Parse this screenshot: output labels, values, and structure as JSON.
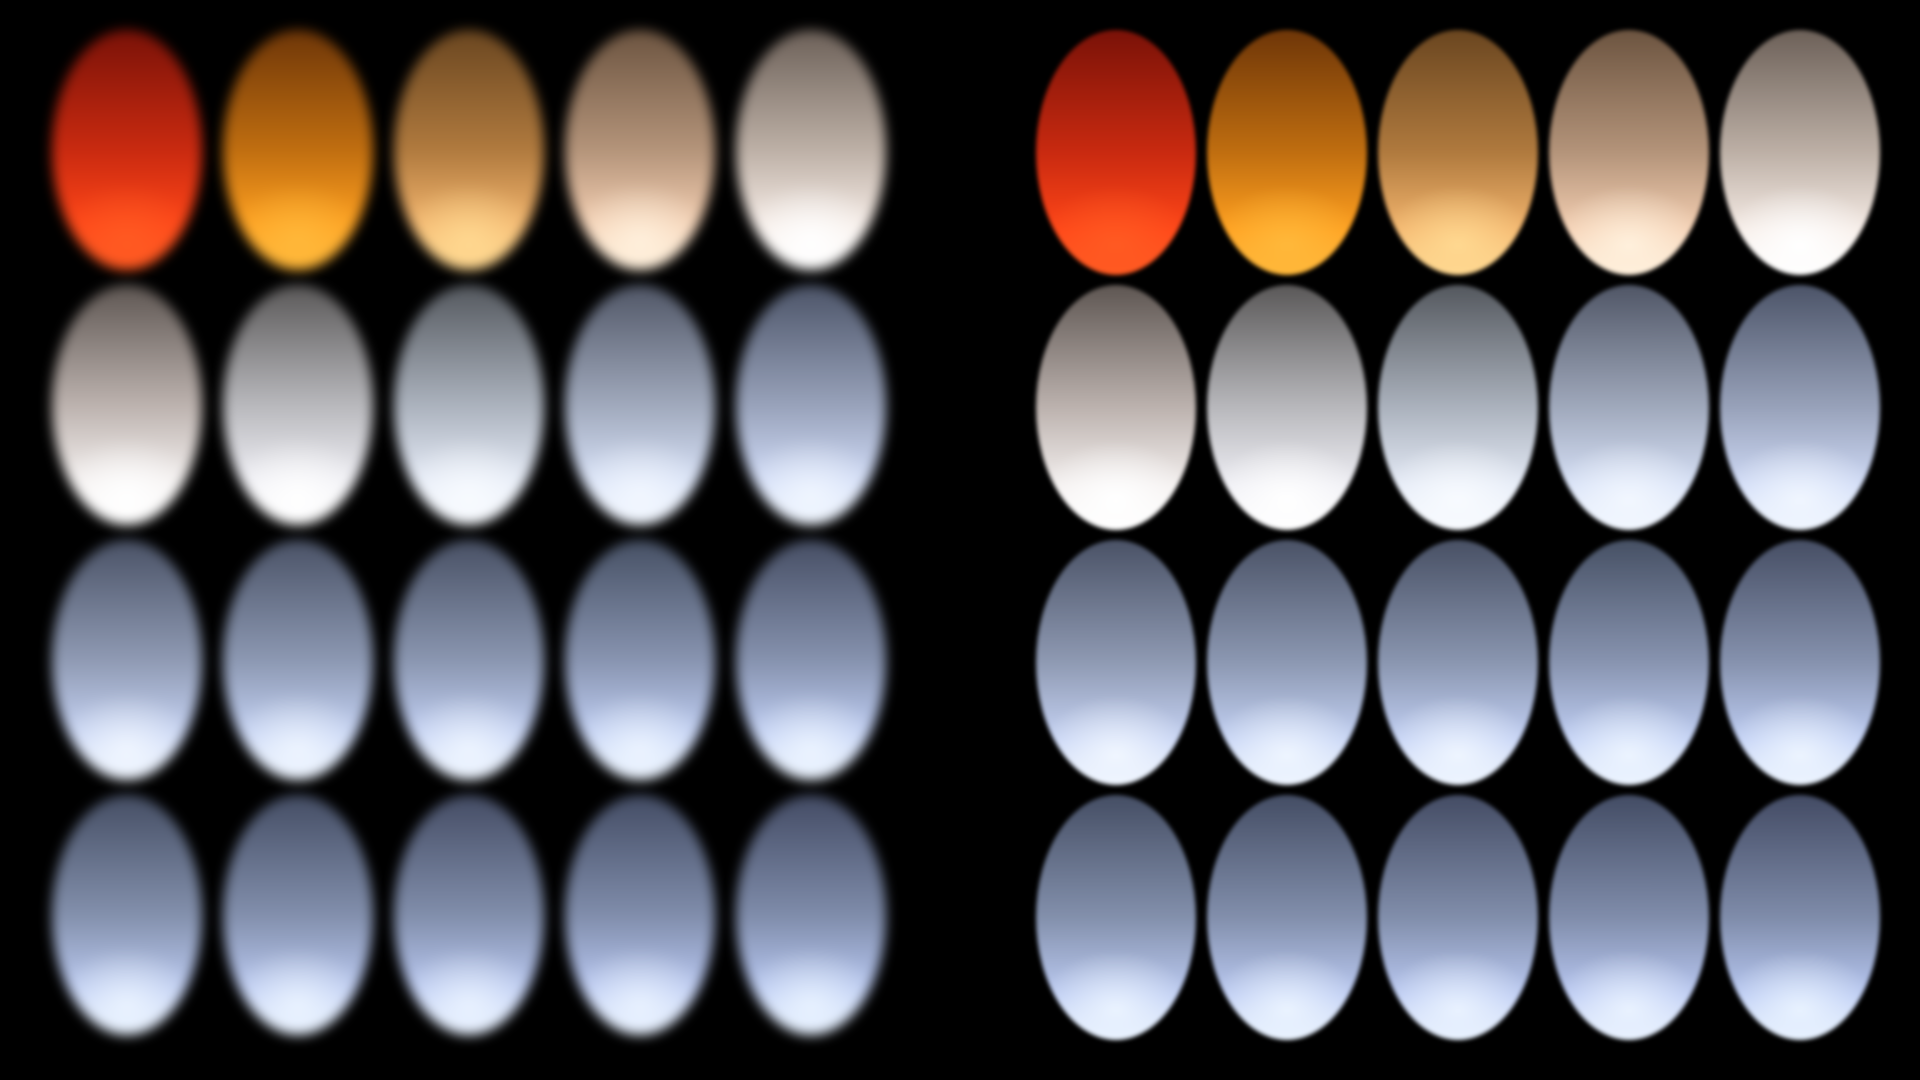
{
  "panels": [
    {
      "name": "left",
      "edge": "soft",
      "rows": [
        [
          {
            "top": "#7a1208",
            "mid": "#c92a10",
            "bottom": "#ff4618",
            "tip": "#ff5a22"
          },
          {
            "top": "#6e3608",
            "mid": "#c06e10",
            "bottom": "#ffa020",
            "tip": "#ffb83a"
          },
          {
            "top": "#6a4620",
            "mid": "#b07a3e",
            "bottom": "#f3b56e",
            "tip": "#ffd890"
          },
          {
            "top": "#6c5440",
            "mid": "#b4947a",
            "bottom": "#f4cfb2",
            "tip": "#fff0dc"
          },
          {
            "top": "#6c6058",
            "mid": "#bdb0a6",
            "bottom": "#f6ece6",
            "tip": "#ffffff"
          }
        ],
        [
          {
            "top": "#5e5652",
            "mid": "#bcb2ae",
            "bottom": "#f3efee",
            "tip": "#ffffff"
          },
          {
            "top": "#5a5858",
            "mid": "#b8b8bc",
            "bottom": "#eeeef4",
            "tip": "#ffffff"
          },
          {
            "top": "#54585e",
            "mid": "#abb2bd",
            "bottom": "#e4eaf6",
            "tip": "#f8fbff"
          },
          {
            "top": "#505666",
            "mid": "#a0a9bc",
            "bottom": "#d6e0f6",
            "tip": "#f2f7ff"
          },
          {
            "top": "#4c5468",
            "mid": "#98a2ba",
            "bottom": "#cfdaf6",
            "tip": "#f0f6ff"
          }
        ],
        [
          {
            "top": "#4a5266",
            "mid": "#8f9ab3",
            "bottom": "#c6d3f4",
            "tip": "#f0f6ff"
          },
          {
            "top": "#4a5266",
            "mid": "#8c98b2",
            "bottom": "#c4d2f4",
            "tip": "#eef5ff"
          },
          {
            "top": "#485064",
            "mid": "#8a96b0",
            "bottom": "#c2d0f4",
            "tip": "#eef5ff"
          },
          {
            "top": "#465064",
            "mid": "#8894b0",
            "bottom": "#c0cff4",
            "tip": "#ecf4ff"
          },
          {
            "top": "#464e64",
            "mid": "#8692ae",
            "bottom": "#bfcef4",
            "tip": "#ecf4ff"
          }
        ],
        [
          {
            "top": "#454e64",
            "mid": "#8390ac",
            "bottom": "#bccbf2",
            "tip": "#eaf3ff"
          },
          {
            "top": "#444d64",
            "mid": "#828fac",
            "bottom": "#bbcaf2",
            "tip": "#eaf3ff"
          },
          {
            "top": "#444c64",
            "mid": "#818eab",
            "bottom": "#bac9f2",
            "tip": "#e9f2ff"
          },
          {
            "top": "#434c64",
            "mid": "#808dab",
            "bottom": "#b9c8f2",
            "tip": "#e9f2ff"
          },
          {
            "top": "#434b64",
            "mid": "#7f8caa",
            "bottom": "#b8c8f2",
            "tip": "#e8f2ff"
          }
        ]
      ]
    },
    {
      "name": "right",
      "edge": "crisp",
      "rows": [
        [
          {
            "top": "#7a1208",
            "mid": "#c92a10",
            "bottom": "#ff4618",
            "tip": "#ff5a22"
          },
          {
            "top": "#6e3608",
            "mid": "#c06e10",
            "bottom": "#ffa020",
            "tip": "#ffb83a"
          },
          {
            "top": "#6a4620",
            "mid": "#b07a3e",
            "bottom": "#f3b56e",
            "tip": "#ffd890"
          },
          {
            "top": "#6c5440",
            "mid": "#b4947a",
            "bottom": "#f4cfb2",
            "tip": "#fff0dc"
          },
          {
            "top": "#6c6058",
            "mid": "#bdb0a6",
            "bottom": "#f6ece6",
            "tip": "#ffffff"
          }
        ],
        [
          {
            "top": "#5e5652",
            "mid": "#bcb2ae",
            "bottom": "#f3efee",
            "tip": "#ffffff"
          },
          {
            "top": "#5a5858",
            "mid": "#b8b8bc",
            "bottom": "#eeeef4",
            "tip": "#ffffff"
          },
          {
            "top": "#54585e",
            "mid": "#abb2bd",
            "bottom": "#e4eaf6",
            "tip": "#f8fbff"
          },
          {
            "top": "#505666",
            "mid": "#a0a9bc",
            "bottom": "#d6e0f6",
            "tip": "#f2f7ff"
          },
          {
            "top": "#4c5468",
            "mid": "#98a2ba",
            "bottom": "#cfdaf6",
            "tip": "#f0f6ff"
          }
        ],
        [
          {
            "top": "#4a5266",
            "mid": "#8f9ab3",
            "bottom": "#c6d3f4",
            "tip": "#f0f6ff"
          },
          {
            "top": "#4a5266",
            "mid": "#8c98b2",
            "bottom": "#c4d2f4",
            "tip": "#eef5ff"
          },
          {
            "top": "#485064",
            "mid": "#8a96b0",
            "bottom": "#c2d0f4",
            "tip": "#eef5ff"
          },
          {
            "top": "#465064",
            "mid": "#8894b0",
            "bottom": "#c0cff4",
            "tip": "#ecf4ff"
          },
          {
            "top": "#464e64",
            "mid": "#8692ae",
            "bottom": "#bfcef4",
            "tip": "#ecf4ff"
          }
        ],
        [
          {
            "top": "#454e64",
            "mid": "#8390ac",
            "bottom": "#bccbf2",
            "tip": "#eaf3ff"
          },
          {
            "top": "#444d64",
            "mid": "#828fac",
            "bottom": "#bbcaf2",
            "tip": "#eaf3ff"
          },
          {
            "top": "#444c64",
            "mid": "#818eab",
            "bottom": "#bac9f2",
            "tip": "#e9f2ff"
          },
          {
            "top": "#434c64",
            "mid": "#808dab",
            "bottom": "#b9c8f2",
            "tip": "#e9f2ff"
          },
          {
            "top": "#434b64",
            "mid": "#7f8caa",
            "bottom": "#b8c8f2",
            "tip": "#e8f2ff"
          }
        ]
      ]
    }
  ]
}
